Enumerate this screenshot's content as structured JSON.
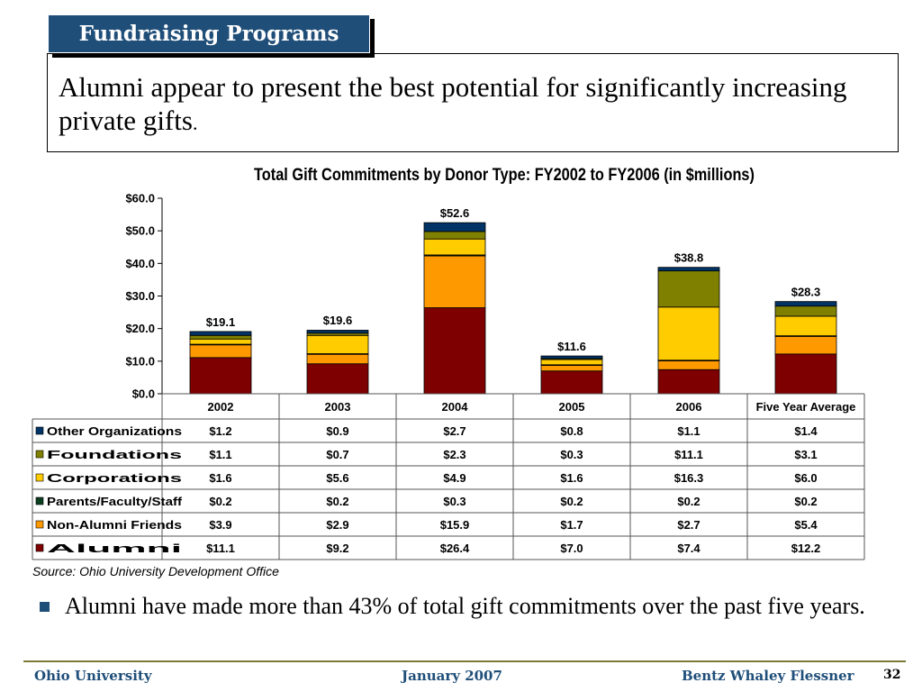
{
  "slide": {
    "section_label": "Fundraising Programs",
    "headline": "Alumni appear to present the best potential for significantly increasing private gifts",
    "headline_end": ".",
    "source": "Source: Ohio University Development Office",
    "bullet": "Alumni have made more than 43% of total gift commitments over the past five years.",
    "footer": {
      "left": "Ohio University",
      "center": "January 2007",
      "right": "Bentz Whaley Flessner",
      "page_number": "32"
    }
  },
  "chart_data": {
    "type": "bar",
    "stacked": true,
    "title": "Total Gift Commitments by Donor Type: FY2002 to FY2006 (in $millions)",
    "categories": [
      "2002",
      "2003",
      "2004",
      "2005",
      "2006",
      "Five Year Average"
    ],
    "y_ticks": [
      "$60.0",
      "$50.0",
      "$40.0",
      "$30.0",
      "$20.0",
      "$10.0",
      "$0.0"
    ],
    "ylim": [
      0,
      60
    ],
    "grid": false,
    "legend": "data-table-left",
    "totals": [
      19.1,
      19.6,
      52.6,
      11.6,
      38.8,
      28.3
    ],
    "total_labels": [
      "$19.1",
      "$19.6",
      "$52.6",
      "$11.6",
      "$38.8",
      "$28.3"
    ],
    "series": [
      {
        "name": "Alumni",
        "color": "#7f0000",
        "values": [
          11.1,
          9.2,
          26.4,
          7.0,
          7.4,
          12.2
        ],
        "labels": [
          "$11.1",
          "$9.2",
          "$26.4",
          "$7.0",
          "$7.4",
          "$12.2"
        ]
      },
      {
        "name": "Non-Alumni Friends",
        "color": "#ff9900",
        "values": [
          3.9,
          2.9,
          15.9,
          1.7,
          2.7,
          5.4
        ],
        "labels": [
          "$3.9",
          "$2.9",
          "$15.9",
          "$1.7",
          "$2.7",
          "$5.4"
        ]
      },
      {
        "name": "Parents/Faculty/Staff",
        "color": "#0b3d20",
        "values": [
          0.2,
          0.2,
          0.3,
          0.2,
          0.2,
          0.2
        ],
        "labels": [
          "$0.2",
          "$0.2",
          "$0.3",
          "$0.2",
          "$0.2",
          "$0.2"
        ]
      },
      {
        "name": "Corporations",
        "color": "#ffcc00",
        "values": [
          1.6,
          5.6,
          4.9,
          1.6,
          16.3,
          6.0
        ],
        "labels": [
          "$1.6",
          "$5.6",
          "$4.9",
          "$1.6",
          "$16.3",
          "$6.0"
        ]
      },
      {
        "name": "Foundations",
        "color": "#808000",
        "values": [
          1.1,
          0.7,
          2.3,
          0.3,
          11.1,
          3.1
        ],
        "labels": [
          "$1.1",
          "$0.7",
          "$2.3",
          "$0.3",
          "$11.1",
          "$3.1"
        ]
      },
      {
        "name": "Other Organizations",
        "color": "#003366",
        "values": [
          1.2,
          0.9,
          2.7,
          0.8,
          1.1,
          1.4
        ],
        "labels": [
          "$1.2",
          "$0.9",
          "$2.7",
          "$0.8",
          "$1.1",
          "$1.4"
        ]
      }
    ]
  }
}
